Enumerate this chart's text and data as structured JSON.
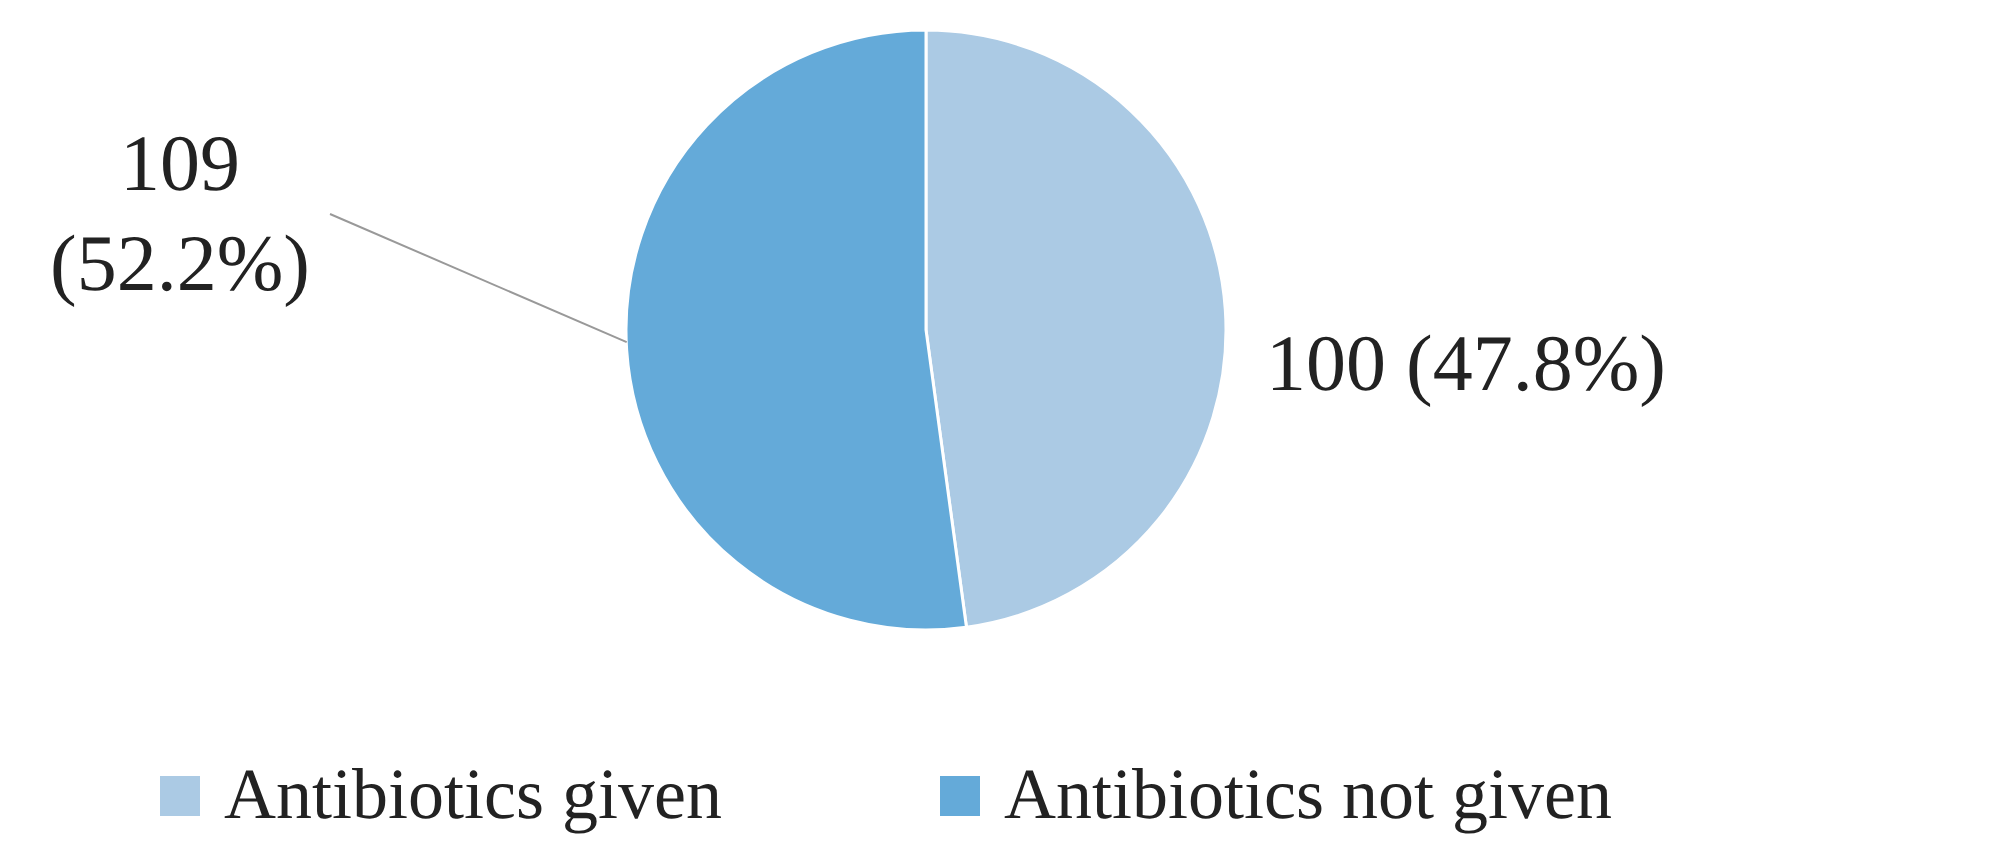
{
  "chart_data": {
    "type": "pie",
    "categories": [
      "Antibiotics given",
      "Antibiotics not given"
    ],
    "values": [
      100,
      109
    ],
    "colors": [
      "#abcae4",
      "#64aad9"
    ],
    "value_labels": [
      "100 (47.8%)",
      "109 (52.2%)"
    ],
    "legend": "bottom"
  }
}
